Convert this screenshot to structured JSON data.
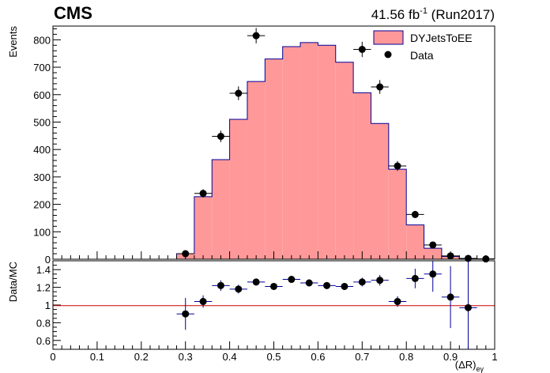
{
  "header": {
    "experiment": "CMS",
    "lumi_value": "41.56 fb",
    "lumi_exponent": "-1",
    "run": "(Run2017)"
  },
  "legend": {
    "mc_label": "DYJetsToEE",
    "data_label": "Data"
  },
  "colors": {
    "mc_fill": "#ff9999",
    "mc_line": "#000099",
    "data": "#000000",
    "ratio_line": "#cc0000",
    "ratio_error": "#000099"
  },
  "chart_data": [
    {
      "type": "histogram",
      "panel": "main",
      "ylabel": "Events",
      "xlim": [
        0,
        1
      ],
      "ylim": [
        0,
        850
      ],
      "bin_width": 0.04,
      "mc_bins": [
        {
          "x_low": 0.28,
          "x_high": 0.32,
          "value": 20
        },
        {
          "x_low": 0.32,
          "x_high": 0.36,
          "value": 228
        },
        {
          "x_low": 0.36,
          "x_high": 0.4,
          "value": 363
        },
        {
          "x_low": 0.4,
          "x_high": 0.44,
          "value": 510
        },
        {
          "x_low": 0.44,
          "x_high": 0.48,
          "value": 648
        },
        {
          "x_low": 0.48,
          "x_high": 0.52,
          "value": 730
        },
        {
          "x_low": 0.52,
          "x_high": 0.56,
          "value": 775
        },
        {
          "x_low": 0.56,
          "x_high": 0.6,
          "value": 790
        },
        {
          "x_low": 0.6,
          "x_high": 0.64,
          "value": 780
        },
        {
          "x_low": 0.64,
          "x_high": 0.68,
          "value": 718
        },
        {
          "x_low": 0.68,
          "x_high": 0.72,
          "value": 607
        },
        {
          "x_low": 0.72,
          "x_high": 0.76,
          "value": 495
        },
        {
          "x_low": 0.76,
          "x_high": 0.8,
          "value": 328
        },
        {
          "x_low": 0.8,
          "x_high": 0.84,
          "value": 125
        },
        {
          "x_low": 0.84,
          "x_high": 0.88,
          "value": 40
        },
        {
          "x_low": 0.88,
          "x_high": 0.92,
          "value": 10
        },
        {
          "x_low": 0.92,
          "x_high": 0.96,
          "value": 3
        },
        {
          "x_low": 0.96,
          "x_high": 1.0,
          "value": 1
        }
      ],
      "data_points": [
        {
          "x": 0.3,
          "y": 20,
          "err": 5
        },
        {
          "x": 0.34,
          "y": 240,
          "err": 15
        },
        {
          "x": 0.38,
          "y": 448,
          "err": 21
        },
        {
          "x": 0.42,
          "y": 605,
          "err": 25
        },
        {
          "x": 0.46,
          "y": 815,
          "err": 28
        },
        {
          "x": 0.7,
          "y": 765,
          "err": 28
        },
        {
          "x": 0.74,
          "y": 628,
          "err": 25
        },
        {
          "x": 0.78,
          "y": 340,
          "err": 18
        },
        {
          "x": 0.82,
          "y": 163,
          "err": 13
        },
        {
          "x": 0.86,
          "y": 52,
          "err": 7
        },
        {
          "x": 0.9,
          "y": 12,
          "err": 3
        },
        {
          "x": 0.94,
          "y": 3,
          "err": 2
        },
        {
          "x": 0.98,
          "y": 1,
          "err": 1
        }
      ],
      "yticks": [
        0,
        100,
        200,
        300,
        400,
        500,
        600,
        700,
        800
      ]
    },
    {
      "type": "scatter",
      "panel": "ratio",
      "ylabel": "Data/MC",
      "xlabel": "(ΔR)",
      "xlabel_subscript": "eγ",
      "xlim": [
        0,
        1
      ],
      "ylim": [
        0.5,
        1.5
      ],
      "reference_line": 1,
      "points": [
        {
          "x": 0.3,
          "y": 0.9,
          "err": 0.18
        },
        {
          "x": 0.34,
          "y": 1.04,
          "err": 0.07
        },
        {
          "x": 0.38,
          "y": 1.22,
          "err": 0.06
        },
        {
          "x": 0.42,
          "y": 1.18,
          "err": 0.05
        },
        {
          "x": 0.46,
          "y": 1.26,
          "err": 0.04
        },
        {
          "x": 0.5,
          "y": 1.21,
          "err": 0.04
        },
        {
          "x": 0.54,
          "y": 1.29,
          "err": 0.04
        },
        {
          "x": 0.58,
          "y": 1.25,
          "err": 0.04
        },
        {
          "x": 0.62,
          "y": 1.22,
          "err": 0.04
        },
        {
          "x": 0.66,
          "y": 1.21,
          "err": 0.04
        },
        {
          "x": 0.7,
          "y": 1.26,
          "err": 0.05
        },
        {
          "x": 0.74,
          "y": 1.28,
          "err": 0.06
        },
        {
          "x": 0.78,
          "y": 1.04,
          "err": 0.06
        },
        {
          "x": 0.82,
          "y": 1.3,
          "err": 0.11
        },
        {
          "x": 0.86,
          "y": 1.35,
          "err": 0.2
        },
        {
          "x": 0.9,
          "y": 1.09,
          "err": 0.35
        },
        {
          "x": 0.94,
          "y": 0.97,
          "err": 0.55
        }
      ],
      "yticks": [
        0.6,
        0.8,
        1,
        1.2,
        1.4
      ],
      "ytick_labels": [
        "0.6",
        "0.8",
        "1",
        "1.2",
        "1.4"
      ],
      "xticks": [
        0,
        0.1,
        0.2,
        0.3,
        0.4,
        0.5,
        0.6,
        0.7,
        0.8,
        0.9,
        1
      ],
      "xtick_labels": [
        "0",
        "0.1",
        "0.2",
        "0.3",
        "0.4",
        "0.5",
        "0.6",
        "0.7",
        "0.8",
        "0.9",
        "1"
      ]
    }
  ]
}
